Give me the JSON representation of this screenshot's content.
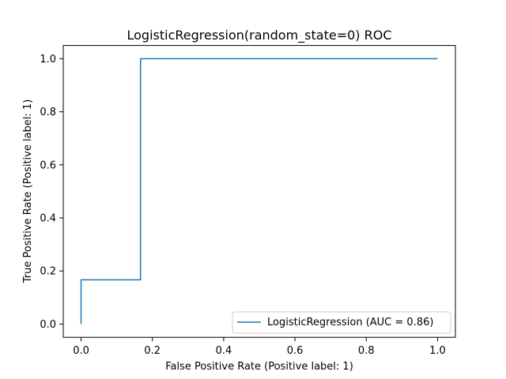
{
  "chart_data": {
    "type": "line",
    "title": "LogisticRegression(random_state=0) ROC",
    "xlabel": "False Positive Rate (Positive label: 1)",
    "ylabel": "True Positive Rate (Positive label: 1)",
    "xlim": [
      -0.05,
      1.05
    ],
    "ylim": [
      -0.05,
      1.05
    ],
    "x_ticks": [
      0.0,
      0.2,
      0.4,
      0.6,
      0.8,
      1.0
    ],
    "x_tick_labels": [
      "0.0",
      "0.2",
      "0.4",
      "0.6",
      "0.8",
      "1.0"
    ],
    "y_ticks": [
      0.0,
      0.2,
      0.4,
      0.6,
      0.8,
      1.0
    ],
    "y_tick_labels": [
      "0.0",
      "0.2",
      "0.4",
      "0.6",
      "0.8",
      "1.0"
    ],
    "grid": false,
    "legend_position": "lower-right",
    "series": [
      {
        "name": "LogisticRegression (AUC = 0.86)",
        "color": "#1f77b4",
        "points": [
          {
            "x": 0.0,
            "y": 0.0
          },
          {
            "x": 0.0,
            "y": 0.1667
          },
          {
            "x": 0.1667,
            "y": 0.1667
          },
          {
            "x": 0.1667,
            "y": 1.0
          },
          {
            "x": 1.0,
            "y": 1.0
          }
        ]
      }
    ]
  }
}
